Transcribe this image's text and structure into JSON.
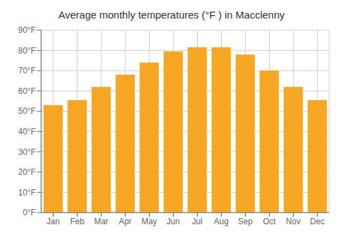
{
  "chart_data": {
    "type": "bar",
    "title": "Average monthly temperatures (°F ) in Macclenny",
    "categories": [
      "Jan",
      "Feb",
      "Mar",
      "Apr",
      "May",
      "Jun",
      "Jul",
      "Aug",
      "Sep",
      "Oct",
      "Nov",
      "Dec"
    ],
    "values": [
      53,
      55.5,
      62,
      68,
      74,
      79.5,
      81.5,
      81.5,
      78,
      70,
      62,
      55.5
    ],
    "color": "#F5A623",
    "ylim": [
      0,
      90
    ],
    "yticks": [
      {
        "value": 0,
        "label": "0°F"
      },
      {
        "value": 10,
        "label": "10°F"
      },
      {
        "value": 20,
        "label": "20°F"
      },
      {
        "value": 30,
        "label": "30°F"
      },
      {
        "value": 40,
        "label": "40°F"
      },
      {
        "value": 50,
        "label": "50°F"
      },
      {
        "value": 60,
        "label": "60°F"
      },
      {
        "value": 70,
        "label": "70°F"
      },
      {
        "value": 80,
        "label": "80°F"
      },
      {
        "value": 90,
        "label": "90°F"
      }
    ],
    "grid": true
  }
}
